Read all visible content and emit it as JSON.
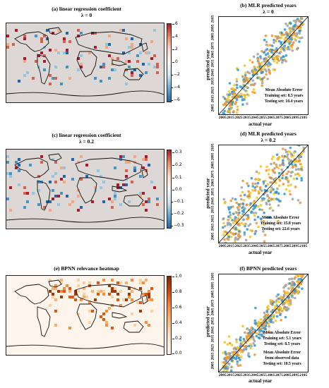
{
  "panels": {
    "a": {
      "title": "(a) linear regression coefficient",
      "lambda": "λ = 0",
      "cbar_ticks": [
        "6",
        "4",
        "2",
        "0",
        "−2",
        "−4",
        "−6"
      ]
    },
    "b": {
      "title": "(b) MLR predicted years",
      "lambda": "λ = 0",
      "xlabel": "actual year",
      "ylabel": "predicted year",
      "ann": [
        "Mean Absolute Error",
        "Training set:   8.5 years",
        "Testing set:   10.4 years"
      ]
    },
    "c": {
      "title": "(c) linear regression coefficient",
      "lambda": "λ = 0.2",
      "cbar_ticks": [
        "0.3",
        "0.2",
        "0.1",
        "0.0",
        "−0.1",
        "−0.2",
        "−0.3"
      ]
    },
    "d": {
      "title": "(d) MLR predicted years",
      "lambda": "λ = 0.2",
      "xlabel": "actual year",
      "ylabel": "predicted year",
      "ann": [
        "Mean Absolute Error",
        "Training set:   15.8 years",
        "Testing set:   22.6 years"
      ]
    },
    "e": {
      "title": "(e) BPNN relevance heatmap",
      "cbar_ticks": [
        "1.0",
        "0.8",
        "0.6",
        "0.4",
        "0.2",
        "0.0"
      ]
    },
    "f": {
      "title": "(f) BPNN predicted years",
      "xlabel": "actual year",
      "ylabel": "predicted year",
      "ann": [
        "Mean Absolute Error",
        "Training set:   5.1 years",
        "Testing set:   8.5 years",
        "",
        "Mean Absolute Error",
        "from observed data",
        "Testing set:   10.5 years"
      ]
    }
  },
  "colors": {
    "gray": "#a0a0a0",
    "orange": "#f0922b",
    "yellow": "#f5c518",
    "blue": "#2f96d1",
    "land": "#e3d6cd",
    "map_bg": "#ddd8d5"
  },
  "chart_data": [
    {
      "panel": "b",
      "type": "scatter",
      "title": "(b) MLR predicted years",
      "subtitle": "λ = 0",
      "xlabel": "actual year",
      "ylabel": "predicted year",
      "xlim": [
        2000,
        2110
      ],
      "ylim": [
        2000,
        2110
      ],
      "x_ticks": [
        2005,
        2015,
        2025,
        2035,
        2045,
        2055,
        2065,
        2075,
        2085,
        2095,
        2105
      ],
      "y_ticks": [
        2005,
        2015,
        2025,
        2035,
        2045,
        2055,
        2065,
        2075,
        2085,
        2095,
        2105
      ],
      "series_colors": [
        "#a0a0a0",
        "#f0922b",
        "#f5c518",
        "#2f96d1"
      ],
      "spread_years": 11,
      "reference_line": "y = x",
      "mae": {
        "training_years": 8.5,
        "testing_years": 10.4
      }
    },
    {
      "panel": "d",
      "type": "scatter",
      "title": "(d) MLR predicted years",
      "subtitle": "λ = 0.2",
      "xlabel": "actual year",
      "ylabel": "predicted year",
      "xlim": [
        2000,
        2110
      ],
      "ylim": [
        2000,
        2110
      ],
      "x_ticks": [
        2005,
        2015,
        2025,
        2035,
        2045,
        2055,
        2065,
        2075,
        2085,
        2095,
        2105
      ],
      "y_ticks": [
        2005,
        2015,
        2025,
        2035,
        2045,
        2055,
        2065,
        2075,
        2085,
        2095,
        2105
      ],
      "series_colors": [
        "#a0a0a0",
        "#f0922b",
        "#f5c518",
        "#2f96d1"
      ],
      "spread_years": 20,
      "reference_line": "y = x",
      "mae": {
        "training_years": 15.8,
        "testing_years": 22.6
      }
    },
    {
      "panel": "f",
      "type": "scatter",
      "title": "(f) BPNN predicted years",
      "xlabel": "actual year",
      "ylabel": "predicted year",
      "xlim": [
        2000,
        2110
      ],
      "ylim": [
        2000,
        2110
      ],
      "x_ticks": [
        2005,
        2015,
        2025,
        2035,
        2045,
        2055,
        2065,
        2075,
        2085,
        2095,
        2105
      ],
      "y_ticks": [
        2005,
        2015,
        2025,
        2035,
        2045,
        2055,
        2065,
        2075,
        2085,
        2095,
        2105
      ],
      "series_colors": [
        "#a0a0a0",
        "#f0922b",
        "#f5c518",
        "#2f96d1"
      ],
      "spread_years": 8,
      "reference_line": "y = x",
      "mae": {
        "training_years": 5.1,
        "testing_years": 8.5,
        "observed_testing_years": 10.5
      }
    },
    {
      "panel": "a",
      "type": "heatmap",
      "title": "(a) linear regression coefficient",
      "subtitle": "λ = 0",
      "colormap": "diverging blue-white-red",
      "range": [
        -6,
        6
      ]
    },
    {
      "panel": "c",
      "type": "heatmap",
      "title": "(c) linear regression coefficient",
      "subtitle": "λ = 0.2",
      "colormap": "diverging blue-white-red",
      "range": [
        -0.3,
        0.3
      ]
    },
    {
      "panel": "e",
      "type": "heatmap",
      "title": "(e) BPNN relevance heatmap",
      "colormap": "white-orange-dark red",
      "range": [
        0.0,
        1.0
      ]
    }
  ]
}
